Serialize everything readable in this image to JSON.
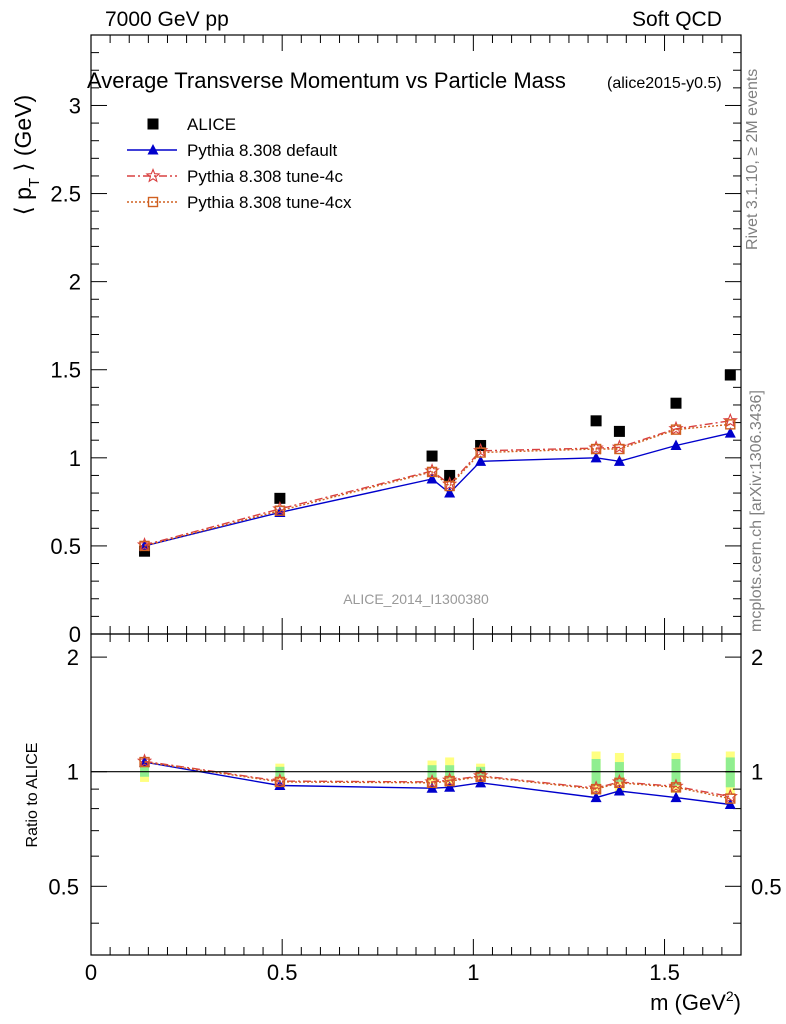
{
  "header": {
    "left": "7000 GeV pp",
    "right": "Soft QCD",
    "title": "Average Transverse Momentum vs Particle Mass",
    "tag": "(alice2015-y0.5)"
  },
  "side": {
    "rivet": "Rivet 3.1.10, ≥ 2M events",
    "mcplots": "mcplots.cern.ch [arXiv:1306.3436]"
  },
  "watermark": "ALICE_2014_I1300380",
  "chart_data": [
    {
      "type": "scatter",
      "panel": "main",
      "ylabel": "⟨ p_T ⟩ (GeV)",
      "ylim": [
        0,
        3.4
      ],
      "xlim": [
        0,
        1.7
      ],
      "yticks": [
        "0",
        "0.5",
        "1",
        "1.5",
        "2",
        "2.5",
        "3"
      ],
      "x": [
        0.14,
        0.494,
        0.892,
        0.938,
        1.019,
        1.321,
        1.382,
        1.53,
        1.672
      ],
      "legend_position": "top-left",
      "series": [
        {
          "name": "ALICE",
          "color": "#000000",
          "marker": "square",
          "line": "none",
          "values": [
            0.47,
            0.77,
            1.01,
            0.9,
            1.07,
            1.21,
            1.15,
            1.31,
            1.47
          ]
        },
        {
          "name": "Pythia 8.308 default",
          "color": "#0000cc",
          "marker": "triangle",
          "line": "solid",
          "values": [
            0.5,
            0.69,
            0.88,
            0.8,
            0.98,
            1.0,
            0.98,
            1.07,
            1.14
          ]
        },
        {
          "name": "Pythia 8.308 tune-4c",
          "color": "#d94040",
          "marker": "star",
          "line": "dashdot",
          "values": [
            0.505,
            0.71,
            0.925,
            0.85,
            1.04,
            1.055,
            1.06,
            1.165,
            1.21
          ]
        },
        {
          "name": "Pythia 8.308 tune-4cx",
          "color": "#d06020",
          "marker": "open-square",
          "line": "dotted",
          "values": [
            0.5,
            0.7,
            0.92,
            0.84,
            1.03,
            1.05,
            1.05,
            1.16,
            1.19
          ]
        }
      ]
    },
    {
      "type": "scatter",
      "panel": "ratio",
      "ylabel": "Ratio to ALICE",
      "ylim": [
        0.33,
        2.3
      ],
      "xlim": [
        0,
        1.7
      ],
      "xlabel": "m (GeV²)",
      "xticks": [
        "0",
        "0.5",
        "1",
        "1.5"
      ],
      "yticks": [
        "0.5",
        "1",
        "2"
      ],
      "x": [
        0.14,
        0.494,
        0.892,
        0.938,
        1.019,
        1.321,
        1.382,
        1.53,
        1.672
      ],
      "bands": {
        "stat_color": "#90ee90",
        "syst_color": "#ffff80",
        "stat": [
          0.03,
          0.03,
          0.04,
          0.04,
          0.03,
          0.08,
          0.06,
          0.08,
          0.09
        ],
        "total": [
          0.06,
          0.05,
          0.07,
          0.09,
          0.05,
          0.13,
          0.12,
          0.12,
          0.13
        ]
      },
      "series": [
        {
          "name": "Pythia 8.308 default",
          "color": "#0000cc",
          "marker": "triangle",
          "line": "solid",
          "values": [
            1.06,
            0.92,
            0.905,
            0.91,
            0.935,
            0.855,
            0.89,
            0.855,
            0.82
          ]
        },
        {
          "name": "Pythia 8.308 tune-4c",
          "color": "#d94040",
          "marker": "star",
          "line": "dashdot",
          "values": [
            1.065,
            0.945,
            0.94,
            0.95,
            0.975,
            0.905,
            0.94,
            0.915,
            0.86
          ]
        },
        {
          "name": "Pythia 8.308 tune-4cx",
          "color": "#d06020",
          "marker": "open-square",
          "line": "dotted",
          "values": [
            1.06,
            0.94,
            0.935,
            0.945,
            0.97,
            0.9,
            0.935,
            0.91,
            0.85
          ]
        }
      ]
    }
  ]
}
